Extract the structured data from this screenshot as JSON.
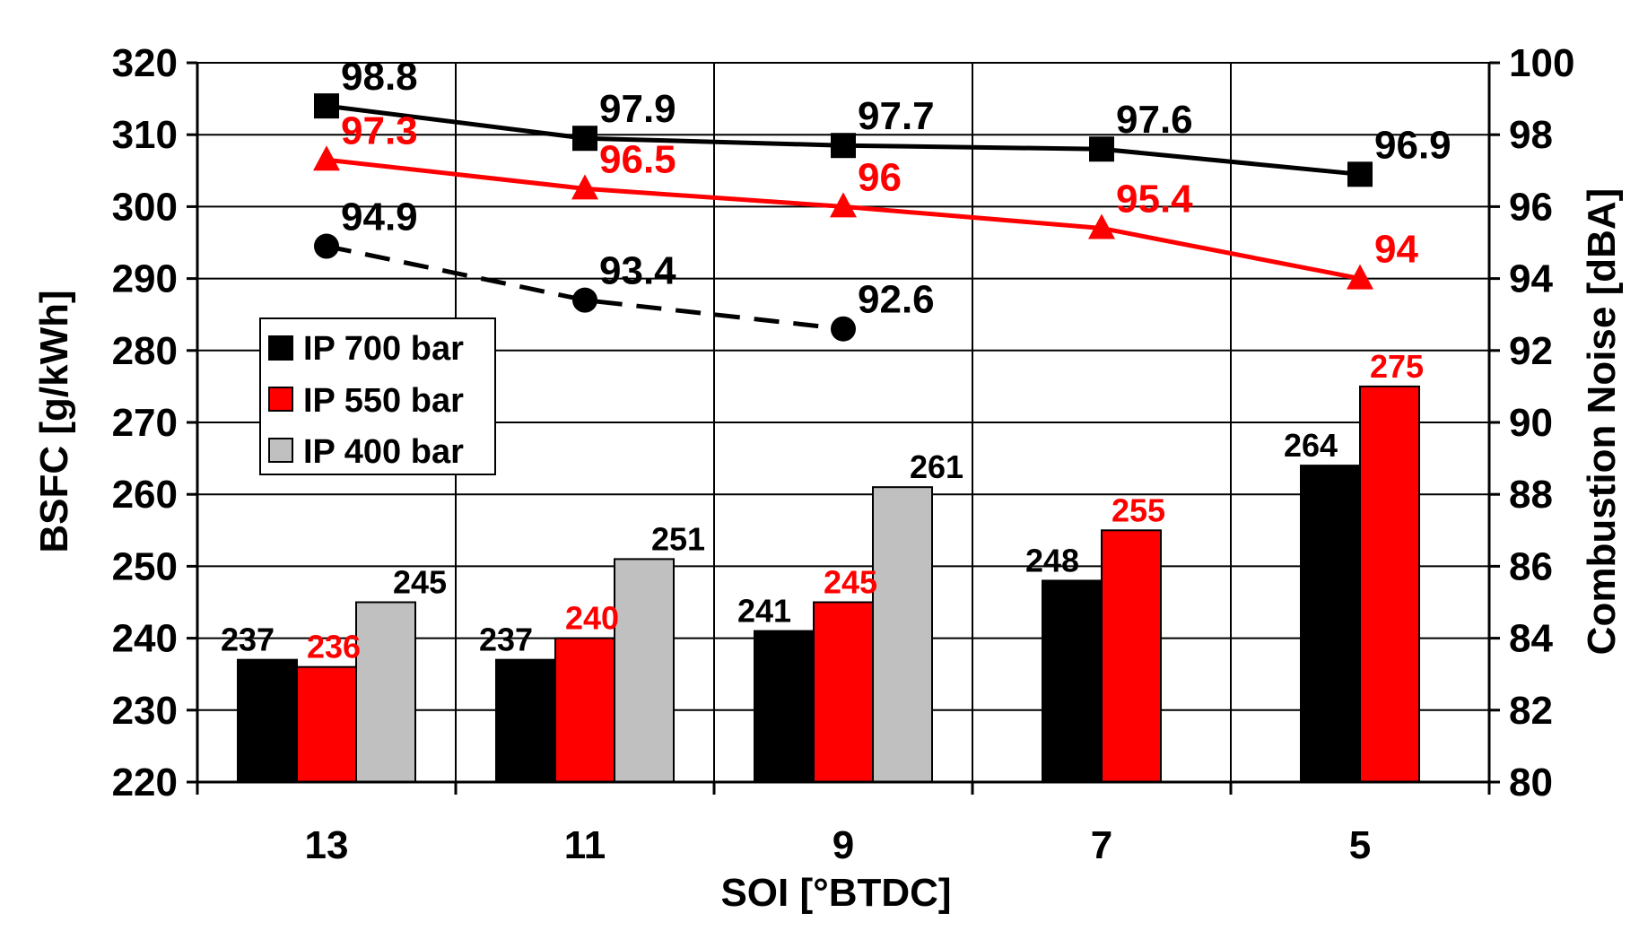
{
  "chart_data": {
    "type": "bar",
    "categories": [
      "13",
      "11",
      "9",
      "7",
      "5"
    ],
    "xlabel": "SOI [°BTDC]",
    "ylabel": "BSFC [g/kWh]",
    "y2label": "Combustion Noise [dBA]",
    "ylim": [
      220,
      320
    ],
    "y2lim": [
      80,
      100
    ],
    "yticks": [
      220,
      230,
      240,
      250,
      260,
      270,
      280,
      290,
      300,
      310,
      320
    ],
    "y2ticks": [
      80,
      82,
      84,
      86,
      88,
      90,
      92,
      94,
      96,
      98,
      100
    ],
    "grid": true,
    "legend_position": "left-middle",
    "series": [
      {
        "name": "IP 700 bar",
        "color": "#000000",
        "values": [
          237,
          237,
          241,
          248,
          264
        ],
        "labels": [
          "237",
          "237",
          "241",
          "248",
          "264"
        ]
      },
      {
        "name": "IP 550 bar",
        "color": "#ff0000",
        "values": [
          236,
          240,
          245,
          255,
          275
        ],
        "labels": [
          "236",
          "240",
          "245",
          "255",
          "275"
        ]
      },
      {
        "name": "IP 400 bar",
        "color": "#c0c0c0",
        "values": [
          245,
          251,
          261,
          null,
          null
        ],
        "labels": [
          "245",
          "251",
          "261",
          "",
          ""
        ]
      }
    ],
    "noise_series": [
      {
        "color": "#000000",
        "marker": "square",
        "dashed": false,
        "values": [
          98.8,
          97.9,
          97.7,
          97.6,
          96.9
        ],
        "labels": [
          "98.8",
          "97.9",
          "97.7",
          "97.6",
          "96.9"
        ]
      },
      {
        "color": "#ff0000",
        "marker": "triangle",
        "dashed": false,
        "values": [
          97.3,
          96.5,
          96.0,
          95.4,
          94.0
        ],
        "labels": [
          "97.3",
          "96.5",
          "96",
          "95.4",
          "94"
        ]
      },
      {
        "color": "#000000",
        "marker": "circle",
        "dashed": true,
        "values": [
          94.9,
          93.4,
          92.6,
          null,
          null
        ],
        "labels": [
          "94.9",
          "93.4",
          "92.6",
          "",
          ""
        ]
      }
    ]
  }
}
